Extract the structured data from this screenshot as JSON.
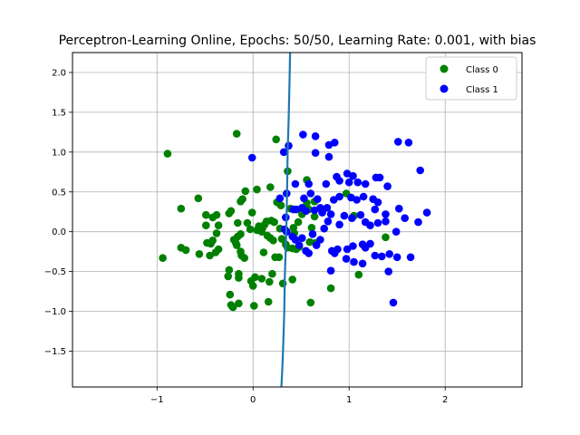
{
  "chart_data": {
    "type": "scatter",
    "title": "Perceptron-Learning Online, Epochs: 50/50, Learning Rate: 0.001, with bias",
    "xlabel": "",
    "ylabel": "",
    "xlim": [
      -1.88,
      2.8
    ],
    "ylim": [
      -1.95,
      2.25
    ],
    "xticks": [
      -1,
      0,
      1,
      2
    ],
    "yticks": [
      -1.5,
      -1.0,
      -0.5,
      0.0,
      0.5,
      1.0,
      1.5,
      2.0
    ],
    "xtick_labels": [
      "−1",
      "0",
      "1",
      "2"
    ],
    "ytick_labels": [
      "−1.5",
      "−1.0",
      "−0.5",
      "0.0",
      "0.5",
      "1.0",
      "1.5",
      "2.0"
    ],
    "grid": true,
    "legend_position": "top-right",
    "series": [
      {
        "name": "Class 0",
        "color": "#008000",
        "points": [
          [
            -0.89,
            0.98
          ],
          [
            -0.17,
            1.23
          ],
          [
            0.24,
            1.16
          ],
          [
            0.18,
            0.56
          ],
          [
            -0.57,
            0.42
          ],
          [
            0.04,
            0.53
          ],
          [
            -0.08,
            0.51
          ],
          [
            -0.13,
            0.38
          ],
          [
            -0.11,
            0.41
          ],
          [
            -0.75,
            0.29
          ],
          [
            -0.38,
            0.21
          ],
          [
            -0.49,
            0.21
          ],
          [
            -0.42,
            0.18
          ],
          [
            -0.49,
            0.08
          ],
          [
            -0.23,
            0.26
          ],
          [
            -0.25,
            0.23
          ],
          [
            -0.01,
            0.24
          ],
          [
            -0.16,
            0.11
          ],
          [
            -0.06,
            0.11
          ],
          [
            -0.36,
            0.08
          ],
          [
            -0.38,
            -0.02
          ],
          [
            -0.13,
            -0.03
          ],
          [
            -0.16,
            -0.06
          ],
          [
            -0.2,
            -0.1
          ],
          [
            -0.42,
            -0.11
          ],
          [
            -0.48,
            -0.14
          ],
          [
            -0.44,
            -0.15
          ],
          [
            -0.75,
            -0.2
          ],
          [
            -0.7,
            -0.23
          ],
          [
            -0.56,
            -0.28
          ],
          [
            -0.94,
            -0.33
          ],
          [
            -0.45,
            -0.3
          ],
          [
            -0.39,
            -0.26
          ],
          [
            -0.36,
            -0.22
          ],
          [
            -0.18,
            -0.14
          ],
          [
            -0.17,
            -0.17
          ],
          [
            -0.13,
            -0.25
          ],
          [
            -0.12,
            -0.3
          ],
          [
            -0.09,
            -0.33
          ],
          [
            -0.03,
            0.03
          ],
          [
            0.04,
            0.02
          ],
          [
            0.1,
            0.05
          ],
          [
            0.14,
            0.13
          ],
          [
            0.19,
            0.14
          ],
          [
            0.22,
            0.12
          ],
          [
            0.12,
            0.09
          ],
          [
            0.06,
            0.07
          ],
          [
            0.09,
            0.0
          ],
          [
            0.15,
            -0.05
          ],
          [
            0.18,
            -0.08
          ],
          [
            0.21,
            -0.11
          ],
          [
            0.28,
            0.04
          ],
          [
            0.3,
            -0.09
          ],
          [
            0.34,
            -0.16
          ],
          [
            0.36,
            -0.2
          ],
          [
            0.41,
            -0.21
          ],
          [
            0.45,
            -0.22
          ],
          [
            0.48,
            -0.19
          ],
          [
            0.43,
            -0.02
          ],
          [
            0.42,
            0.05
          ],
          [
            0.47,
            0.12
          ],
          [
            0.39,
            0.29
          ],
          [
            0.25,
            0.37
          ],
          [
            0.29,
            0.33
          ],
          [
            0.36,
            0.76
          ],
          [
            0.56,
            0.65
          ],
          [
            0.56,
            0.36
          ],
          [
            0.64,
            0.38
          ],
          [
            0.51,
            0.22
          ],
          [
            0.58,
            0.28
          ],
          [
            0.64,
            0.19
          ],
          [
            0.61,
            0.05
          ],
          [
            0.59,
            -0.13
          ],
          [
            0.65,
            -0.14
          ],
          [
            0.27,
            -0.32
          ],
          [
            0.23,
            -0.32
          ],
          [
            0.11,
            -0.26
          ],
          [
            0.2,
            -0.53
          ],
          [
            0.17,
            -0.63
          ],
          [
            0.09,
            -0.59
          ],
          [
            0.02,
            -0.57
          ],
          [
            -0.02,
            -0.62
          ],
          [
            0.0,
            -0.68
          ],
          [
            0.01,
            -0.93
          ],
          [
            0.16,
            -0.88
          ],
          [
            0.31,
            -0.65
          ],
          [
            0.41,
            -0.6
          ],
          [
            0.6,
            -0.89
          ],
          [
            0.81,
            -0.71
          ],
          [
            -0.25,
            -0.48
          ],
          [
            -0.26,
            -0.56
          ],
          [
            -0.15,
            -0.53
          ],
          [
            -0.15,
            -0.58
          ],
          [
            -0.24,
            -0.79
          ],
          [
            -0.23,
            -0.92
          ],
          [
            -0.21,
            -0.95
          ],
          [
            -0.15,
            -0.9
          ],
          [
            1.1,
            -0.54
          ],
          [
            1.38,
            -0.07
          ],
          [
            0.97,
            0.48
          ],
          [
            1.05,
            0.2
          ]
        ]
      },
      {
        "name": "Class 1",
        "color": "#0000ff",
        "points": [
          [
            0.52,
            1.22
          ],
          [
            0.65,
            1.2
          ],
          [
            0.37,
            1.08
          ],
          [
            0.32,
            1.0
          ],
          [
            0.79,
            1.09
          ],
          [
            0.85,
            1.12
          ],
          [
            0.65,
            0.99
          ],
          [
            0.79,
            0.94
          ],
          [
            0.98,
            0.73
          ],
          [
            1.04,
            0.7
          ],
          [
            1.51,
            1.13
          ],
          [
            1.62,
            1.12
          ],
          [
            1.74,
            0.77
          ],
          [
            -0.01,
            0.93
          ],
          [
            0.44,
            0.6
          ],
          [
            0.58,
            0.6
          ],
          [
            0.76,
            0.6
          ],
          [
            0.87,
            0.69
          ],
          [
            0.9,
            0.64
          ],
          [
            1.0,
            0.62
          ],
          [
            1.09,
            0.62
          ],
          [
            1.17,
            0.6
          ],
          [
            1.28,
            0.68
          ],
          [
            1.32,
            0.68
          ],
          [
            1.4,
            0.57
          ],
          [
            0.28,
            0.42
          ],
          [
            0.35,
            0.48
          ],
          [
            0.42,
            0.28
          ],
          [
            0.51,
            0.3
          ],
          [
            0.53,
            0.42
          ],
          [
            0.6,
            0.48
          ],
          [
            0.67,
            0.41
          ],
          [
            0.72,
            0.24
          ],
          [
            0.84,
            0.4
          ],
          [
            0.9,
            0.44
          ],
          [
            1.02,
            0.43
          ],
          [
            1.08,
            0.4
          ],
          [
            1.15,
            0.44
          ],
          [
            1.25,
            0.41
          ],
          [
            1.3,
            0.37
          ],
          [
            1.27,
            0.28
          ],
          [
            1.38,
            0.22
          ],
          [
            1.52,
            0.29
          ],
          [
            1.58,
            0.17
          ],
          [
            1.72,
            0.12
          ],
          [
            1.81,
            0.24
          ],
          [
            0.34,
            0.18
          ],
          [
            0.45,
            0.28
          ],
          [
            0.55,
            0.26
          ],
          [
            0.64,
            0.27
          ],
          [
            0.7,
            0.3
          ],
          [
            0.77,
            0.3
          ],
          [
            0.81,
            0.22
          ],
          [
            0.9,
            0.09
          ],
          [
            0.95,
            0.2
          ],
          [
            1.03,
            0.17
          ],
          [
            1.12,
            0.21
          ],
          [
            1.17,
            0.12
          ],
          [
            1.22,
            0.08
          ],
          [
            1.3,
            0.11
          ],
          [
            1.38,
            0.13
          ],
          [
            1.49,
            0.0
          ],
          [
            0.35,
            0.0
          ],
          [
            0.41,
            -0.06
          ],
          [
            0.48,
            -0.17
          ],
          [
            0.55,
            -0.24
          ],
          [
            0.58,
            -0.27
          ],
          [
            0.66,
            -0.17
          ],
          [
            0.7,
            -0.1
          ],
          [
            0.74,
            0.04
          ],
          [
            0.78,
            0.13
          ],
          [
            0.82,
            -0.24
          ],
          [
            0.85,
            -0.27
          ],
          [
            0.88,
            -0.22
          ],
          [
            0.98,
            -0.22
          ],
          [
            1.04,
            -0.18
          ],
          [
            1.14,
            -0.16
          ],
          [
            1.17,
            -0.2
          ],
          [
            1.22,
            -0.15
          ],
          [
            1.27,
            -0.3
          ],
          [
            1.34,
            -0.31
          ],
          [
            1.42,
            -0.28
          ],
          [
            1.5,
            -0.32
          ],
          [
            1.64,
            -0.32
          ],
          [
            1.14,
            -0.4
          ],
          [
            1.05,
            -0.38
          ],
          [
            0.97,
            -0.34
          ],
          [
            0.81,
            -0.49
          ],
          [
            1.41,
            -0.5
          ],
          [
            1.46,
            -0.89
          ],
          [
            0.44,
            -0.1
          ],
          [
            0.51,
            -0.08
          ],
          [
            0.62,
            -0.03
          ],
          [
            0.33,
            0.03
          ]
        ]
      }
    ],
    "decision_boundary": {
      "name": "",
      "color": "#1f77b4",
      "points": [
        [
          0.385,
          2.25
        ],
        [
          0.38,
          1.9
        ],
        [
          0.37,
          1.4
        ],
        [
          0.36,
          1.0
        ],
        [
          0.355,
          0.6
        ],
        [
          0.35,
          0.2
        ],
        [
          0.34,
          -0.2
        ],
        [
          0.33,
          -0.6
        ],
        [
          0.325,
          -1.0
        ],
        [
          0.315,
          -1.4
        ],
        [
          0.305,
          -1.7
        ],
        [
          0.295,
          -1.95
        ]
      ]
    }
  }
}
